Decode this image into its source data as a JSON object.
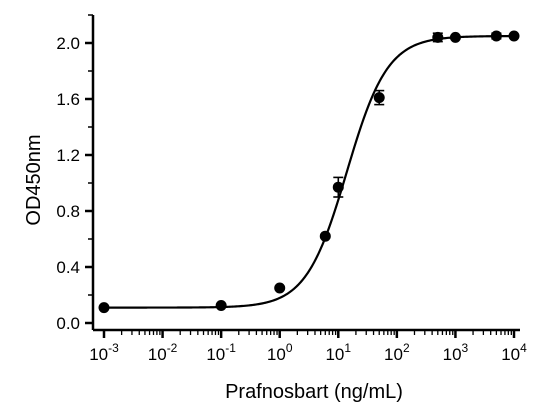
{
  "chart_data": {
    "type": "scatter",
    "title": "",
    "xlabel": "Prafnosbart (ng/mL)",
    "ylabel": "OD450nm",
    "xscale": "log",
    "xlim": [
      0.001,
      10000
    ],
    "ylim": [
      0.0,
      2.2
    ],
    "x_ticks": [
      {
        "value": 0.001,
        "base": "10",
        "exp": "-3"
      },
      {
        "value": 0.01,
        "base": "10",
        "exp": "-2"
      },
      {
        "value": 0.1,
        "base": "10",
        "exp": "-1"
      },
      {
        "value": 1,
        "base": "10",
        "exp": "0"
      },
      {
        "value": 10,
        "base": "10",
        "exp": "1"
      },
      {
        "value": 100,
        "base": "10",
        "exp": "2"
      },
      {
        "value": 1000,
        "base": "10",
        "exp": "3"
      },
      {
        "value": 10000,
        "base": "10",
        "exp": "4"
      }
    ],
    "y_ticks": [
      {
        "value": 0.0,
        "label": "0.0"
      },
      {
        "value": 0.4,
        "label": "0.4"
      },
      {
        "value": 0.8,
        "label": "0.8"
      },
      {
        "value": 1.2,
        "label": "1.2"
      },
      {
        "value": 1.6,
        "label": "1.6"
      },
      {
        "value": 2.0,
        "label": "2.0"
      }
    ],
    "grid": false,
    "legend": "none",
    "series": [
      {
        "points": [
          {
            "x": 0.001,
            "y": 0.11,
            "err": 0.005
          },
          {
            "x": 0.1,
            "y": 0.125,
            "err": 0.005
          },
          {
            "x": 1,
            "y": 0.25,
            "err": 0.01
          },
          {
            "x": 6,
            "y": 0.62,
            "err": 0.01
          },
          {
            "x": 10,
            "y": 0.97,
            "err": 0.07
          },
          {
            "x": 50,
            "y": 1.61,
            "err": 0.05
          },
          {
            "x": 500,
            "y": 2.04,
            "err": 0.03
          },
          {
            "x": 1000,
            "y": 2.04,
            "err": 0.01
          },
          {
            "x": 5000,
            "y": 2.05,
            "err": 0.02
          },
          {
            "x": 10000,
            "y": 2.05,
            "err": 0.01
          }
        ],
        "fit": {
          "model": "4PL",
          "bottom": 0.11,
          "top": 2.05,
          "ec50": 14,
          "hill": 1.25
        }
      }
    ],
    "colors": {
      "marker": "#000000",
      "line": "#000000",
      "axis": "#000000"
    }
  }
}
